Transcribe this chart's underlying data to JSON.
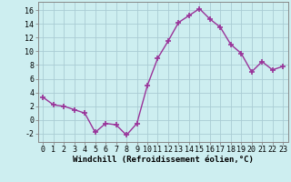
{
  "x": [
    0,
    1,
    2,
    3,
    4,
    5,
    6,
    7,
    8,
    9,
    10,
    11,
    12,
    13,
    14,
    15,
    16,
    17,
    18,
    19,
    20,
    21,
    22,
    23
  ],
  "y": [
    3.3,
    2.2,
    2.0,
    1.5,
    1.0,
    -1.8,
    -0.5,
    -0.7,
    -2.2,
    -0.5,
    5.0,
    9.0,
    11.5,
    14.2,
    15.2,
    16.2,
    14.7,
    13.5,
    11.0,
    9.7,
    7.0,
    8.5,
    7.3,
    7.8
  ],
  "line_color": "#993399",
  "marker": "+",
  "marker_size": 4,
  "linewidth": 1.0,
  "bg_color": "#cdeef0",
  "grid_color": "#aaccd4",
  "xlabel": "Windchill (Refroidissement éolien,°C)",
  "xlabel_fontsize": 6.5,
  "ylabel_ticks": [
    -2,
    0,
    2,
    4,
    6,
    8,
    10,
    12,
    14,
    16
  ],
  "xtick_labels": [
    "0",
    "1",
    "2",
    "3",
    "4",
    "5",
    "6",
    "7",
    "8",
    "9",
    "10",
    "11",
    "12",
    "13",
    "14",
    "15",
    "16",
    "17",
    "18",
    "19",
    "20",
    "21",
    "22",
    "23"
  ],
  "xlim": [
    -0.5,
    23.5
  ],
  "ylim": [
    -3.2,
    17.2
  ],
  "tick_fontsize": 6.0
}
